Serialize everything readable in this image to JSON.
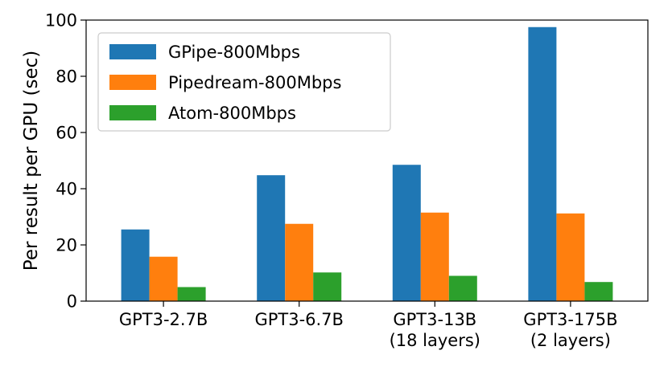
{
  "chart_data": {
    "type": "bar",
    "title": "",
    "xlabel": "",
    "ylabel": "Per result per GPU (sec)",
    "ylim": [
      0,
      100
    ],
    "yticks": [
      0,
      20,
      40,
      60,
      80,
      100
    ],
    "grid": false,
    "legend_position": "top-left",
    "categories": [
      [
        "GPT3-2.7B"
      ],
      [
        "GPT3-6.7B"
      ],
      [
        "GPT3-13B",
        "(18 layers)"
      ],
      [
        "GPT3-175B",
        "(2 layers)"
      ]
    ],
    "series": [
      {
        "name": "GPipe-800Mbps",
        "color": "#1f77b4",
        "values": [
          25.5,
          44.8,
          48.5,
          97.5
        ]
      },
      {
        "name": "Pipedream-800Mbps",
        "color": "#ff7f0e",
        "values": [
          15.8,
          27.5,
          31.5,
          31.2
        ]
      },
      {
        "name": "Atom-800Mbps",
        "color": "#2ca02c",
        "values": [
          5.0,
          10.2,
          9.0,
          6.8
        ]
      }
    ]
  }
}
